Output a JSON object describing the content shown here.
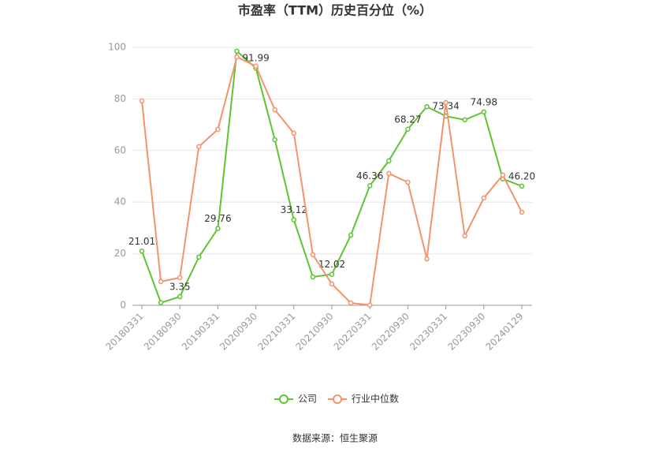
{
  "chart_data": {
    "type": "line",
    "title": "市盈率（TTM）历史百分位（%）",
    "categories": [
      "20180331",
      null,
      "20180930",
      null,
      "20190331",
      null,
      "20200930",
      null,
      "20210331",
      null,
      "20210930",
      null,
      "20220331",
      null,
      "20220930",
      null,
      "20230331",
      null,
      "20230930",
      null,
      "20240129"
    ],
    "series": [
      {
        "name": "公司",
        "color": "#5cc531",
        "values": [
          21.01,
          1,
          3.35,
          18.7,
          29.76,
          98.5,
          91.99,
          64.2,
          33.12,
          11,
          12.02,
          27.2,
          46.36,
          56,
          68.27,
          77,
          73.34,
          71.9,
          74.98,
          49,
          46.2
        ],
        "value_labels": [
          "21.01",
          null,
          "3.35",
          null,
          "29.76",
          null,
          "91.99",
          null,
          "33.12",
          null,
          "12.02",
          null,
          "46.36",
          null,
          "68.27",
          null,
          "73.34",
          null,
          "74.98",
          null,
          "46.20"
        ]
      },
      {
        "name": "行业中位数",
        "color": "#f4936b",
        "values": [
          79.2,
          9.2,
          10.7,
          61.5,
          68.2,
          96.3,
          92.7,
          75.8,
          66.7,
          19.6,
          8.3,
          0.9,
          0.1,
          51.1,
          47.7,
          18,
          78.6,
          26.9,
          41.6,
          50.5,
          36.1
        ]
      }
    ],
    "ylim": [
      0,
      100
    ],
    "yticks": [
      0,
      20,
      40,
      60,
      80,
      100
    ],
    "grid": true,
    "source": "数据来源：恒生聚源"
  }
}
